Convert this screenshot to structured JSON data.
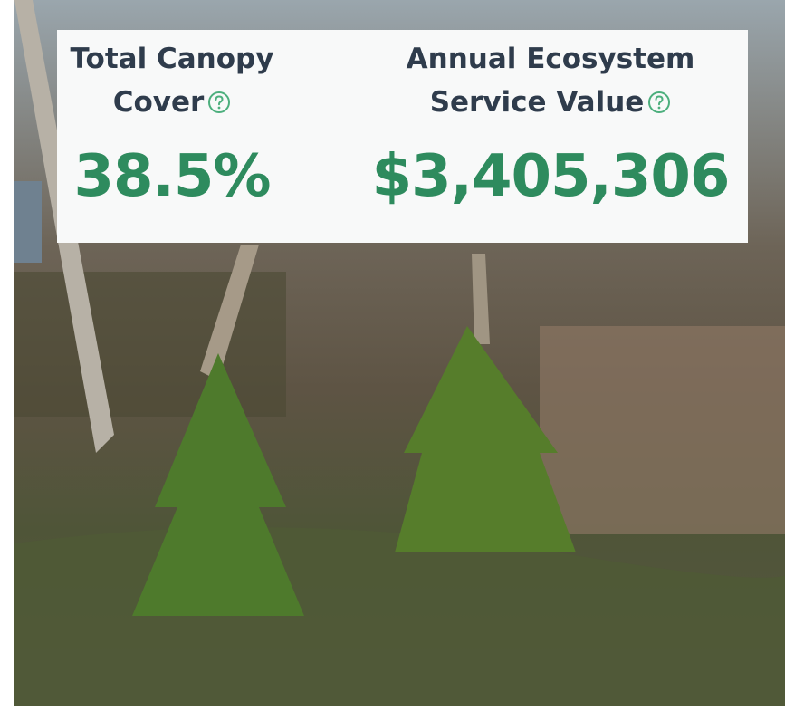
{
  "stats": [
    {
      "label": "Total Canopy Cover",
      "value": "38.5%"
    },
    {
      "label": "Annual Ecosystem Service Value",
      "value": "$3,405,306"
    }
  ]
}
